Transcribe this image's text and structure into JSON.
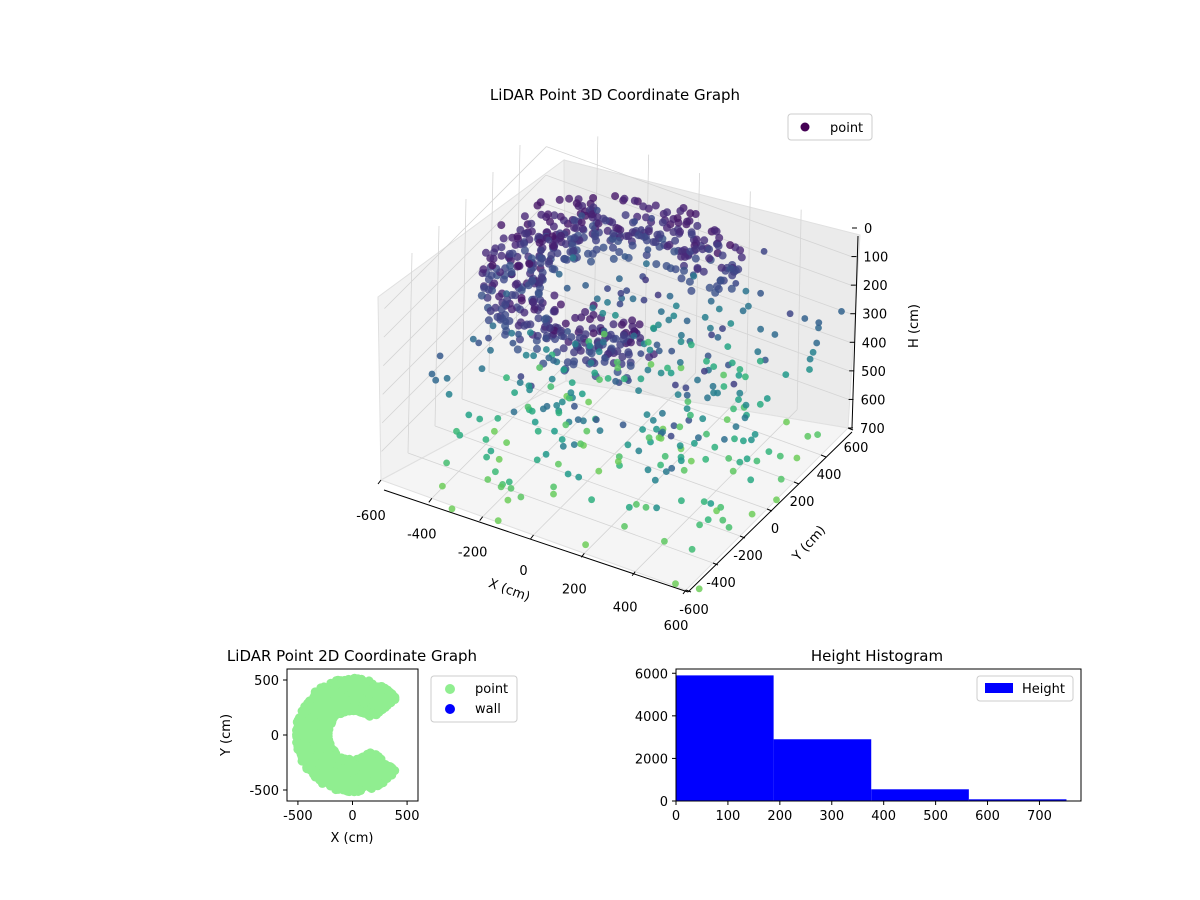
{
  "chart_data": [
    {
      "id": "lidar-3d",
      "type": "scatter",
      "title": "LiDAR Point 3D Coordinate Graph",
      "xlabel": "X (cm)",
      "ylabel": "Y (cm)",
      "zlabel": "H (cm)",
      "xlim": [
        -600,
        600
      ],
      "ylim": [
        -600,
        600
      ],
      "zlim": [
        0,
        700
      ],
      "z_inverted": true,
      "xticks": [
        -600,
        -400,
        -200,
        0,
        200,
        400,
        600
      ],
      "yticks": [
        -600,
        -400,
        -200,
        0,
        200,
        400,
        600
      ],
      "zticks": [
        0,
        100,
        200,
        300,
        400,
        500,
        600,
        700
      ],
      "colormap": "viridis",
      "legend": {
        "placement": "upper-right",
        "entries": [
          {
            "label": "point",
            "color": "#440154"
          }
        ]
      },
      "grid": true,
      "series": [
        {
          "name": "point",
          "x": [
            -100,
            150,
            -300,
            50,
            300,
            200,
            -200,
            400,
            100,
            -50,
            250,
            350,
            -150,
            0,
            450,
            500,
            150,
            300,
            -250,
            200
          ],
          "y": [
            -400,
            -300,
            -500,
            -200,
            -100,
            100,
            0,
            200,
            -450,
            -550,
            -350,
            50,
            -300,
            -100,
            300,
            400,
            -500,
            -250,
            -400,
            500
          ],
          "h": [
            400,
            350,
            300,
            500,
            450,
            550,
            380,
            600,
            250,
            200,
            320,
            500,
            420,
            480,
            620,
            650,
            280,
            420,
            360,
            580
          ]
        }
      ]
    },
    {
      "id": "lidar-2d",
      "type": "scatter",
      "title": "LiDAR Point 2D Coordinate Graph",
      "xlabel": "X (cm)",
      "ylabel": "Y (cm)",
      "xlim": [
        -600,
        600
      ],
      "ylim": [
        -600,
        600
      ],
      "xticks": [
        -500,
        0,
        500
      ],
      "yticks": [
        -500,
        0,
        500
      ],
      "legend": {
        "placement": "outside-right",
        "entries": [
          {
            "label": "point",
            "color": "#90ee90"
          },
          {
            "label": "wall",
            "color": "#0000ff"
          }
        ]
      },
      "series": [
        {
          "name": "point",
          "color": "#90ee90",
          "shape": "horseshoe ring, inner radius ~200, outer radius ~500, opening toward +X"
        },
        {
          "name": "wall",
          "color": "#0000ff",
          "x": [],
          "y": []
        }
      ]
    },
    {
      "id": "height-hist",
      "type": "bar",
      "title": "Height Histogram",
      "xlim": [
        0,
        780
      ],
      "ylim": [
        0,
        6200
      ],
      "xticks": [
        0,
        100,
        200,
        300,
        400,
        500,
        600,
        700
      ],
      "yticks": [
        0,
        2000,
        4000,
        6000
      ],
      "bin_edges": [
        0,
        188,
        376,
        564,
        752
      ],
      "values": [
        5900,
        2900,
        550,
        80
      ],
      "legend": {
        "placement": "upper-right",
        "entries": [
          {
            "label": "Height",
            "color": "#0000ff"
          }
        ]
      },
      "color": "#0000ff"
    }
  ]
}
